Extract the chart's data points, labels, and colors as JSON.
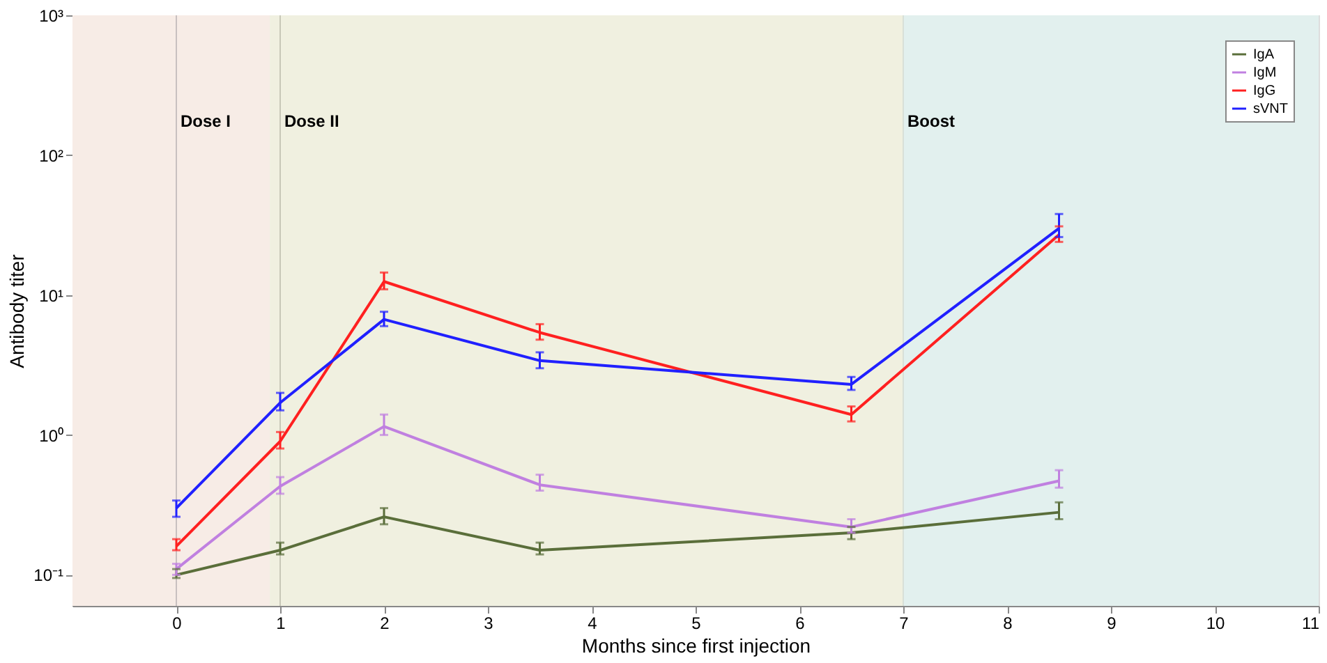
{
  "chart_data": {
    "type": "line",
    "xlabel": "Months since first injection",
    "ylabel": "Antibody titer",
    "xlim": [
      -1,
      11
    ],
    "xticks": [
      0,
      1,
      2,
      3,
      4,
      5,
      6,
      7,
      8,
      9,
      10,
      11
    ],
    "ylim": [
      0.06,
      1000
    ],
    "yticks": [
      {
        "value": 0.1,
        "label": "10⁻¹"
      },
      {
        "value": 1,
        "label": "10⁰"
      },
      {
        "value": 10,
        "label": "10¹"
      },
      {
        "value": 100,
        "label": "10²"
      },
      {
        "value": 1000,
        "label": "10³"
      }
    ],
    "log": "y",
    "legend": "top right",
    "marker": "none",
    "line_style": "solid",
    "x": [
      0,
      1,
      2,
      3.5,
      6.5,
      8.5
    ],
    "series": [
      {
        "name": "IgA",
        "color": "#5a6e3a",
        "values": [
          0.1,
          0.15,
          0.26,
          0.15,
          0.2,
          0.28
        ],
        "errors": [
          [
            0.095,
            0.11
          ],
          [
            0.14,
            0.17
          ],
          [
            0.23,
            0.3
          ],
          [
            0.14,
            0.17
          ],
          [
            0.18,
            0.22
          ],
          [
            0.25,
            0.33
          ]
        ]
      },
      {
        "name": "IgM",
        "color": "#c080e0",
        "values": [
          0.11,
          0.43,
          1.15,
          0.44,
          0.22,
          0.47
        ],
        "errors": [
          [
            0.1,
            0.12
          ],
          [
            0.38,
            0.5
          ],
          [
            1.0,
            1.4
          ],
          [
            0.4,
            0.52
          ],
          [
            0.2,
            0.25
          ],
          [
            0.42,
            0.56
          ]
        ]
      },
      {
        "name": "IgG",
        "color": "#ff2020",
        "values": [
          0.16,
          0.9,
          12.5,
          5.4,
          1.4,
          27
        ],
        "errors": [
          [
            0.15,
            0.18
          ],
          [
            0.8,
            1.05
          ],
          [
            11,
            14.5
          ],
          [
            4.8,
            6.2
          ],
          [
            1.25,
            1.6
          ],
          [
            24,
            31
          ]
        ]
      },
      {
        "name": "sVNT",
        "color": "#2020ff",
        "values": [
          0.3,
          1.7,
          6.7,
          3.4,
          2.3,
          30
        ],
        "errors": [
          [
            0.26,
            0.34
          ],
          [
            1.5,
            2.0
          ],
          [
            6.0,
            7.6
          ],
          [
            3.0,
            3.9
          ],
          [
            2.1,
            2.6
          ],
          [
            26,
            38
          ]
        ]
      }
    ],
    "bands": [
      {
        "axis": "x",
        "from": -1,
        "to": 0.9,
        "color": "#f7ece6"
      },
      {
        "axis": "x",
        "from": 0.9,
        "to": 7,
        "color": "#f0f0e0"
      },
      {
        "axis": "x",
        "from": 7,
        "to": 11,
        "color": "#e2f0ee"
      }
    ],
    "ref_lines": [
      {
        "axis": "x",
        "value": 0,
        "label": "Dose I",
        "color": "#c8c0c0"
      },
      {
        "axis": "x",
        "value": 1,
        "label": "Dose II",
        "color": "#c8c8b8"
      },
      {
        "axis": "x",
        "value": 7,
        "label": "Boost",
        "color": "#d8e0d8"
      }
    ]
  }
}
